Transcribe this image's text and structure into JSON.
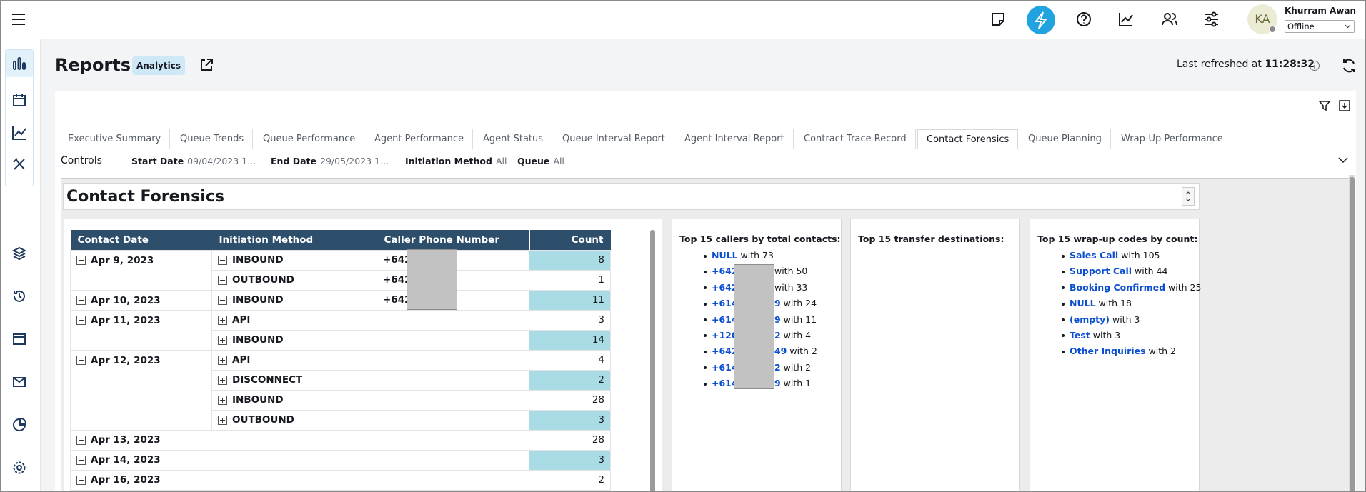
{
  "header": {
    "user_initials": "KA",
    "user_name": "Khurram Awan",
    "status": "Offline"
  },
  "page": {
    "title": "Reports",
    "badge": "Analytics",
    "refreshed_label": "Last refreshed at",
    "refreshed_time": "11:28:32"
  },
  "tabs": {
    "items": [
      "Executive Summary",
      "Queue Trends",
      "Queue Performance",
      "Agent Performance",
      "Agent Status",
      "Queue Interval Report",
      "Agent Interval Report",
      "Contract Trace Record",
      "Contact Forensics",
      "Queue Planning",
      "Wrap-Up Performance"
    ],
    "active": 8
  },
  "controls": {
    "label": "Controls",
    "filters": [
      {
        "label": "Start Date",
        "value": "09/04/2023 1…"
      },
      {
        "label": "End Date",
        "value": "29/05/2023 1…"
      },
      {
        "label": "Initiation Method",
        "value": "All"
      },
      {
        "label": "Queue",
        "value": "All"
      }
    ]
  },
  "report": {
    "title": "Contact Forensics",
    "table": {
      "columns": [
        "Contact Date",
        "Initiation Method",
        "Caller Phone Number",
        "Count"
      ],
      "rows": [
        {
          "date": "Apr 9, 2023",
          "expanded": true,
          "methods": [
            {
              "method": "INBOUND",
              "expanded": true,
              "phone": "+642",
              "count": 8
            },
            {
              "method": "OUTBOUND",
              "expanded": true,
              "phone": "+642",
              "count": 1
            }
          ]
        },
        {
          "date": "Apr 10, 2023",
          "expanded": true,
          "methods": [
            {
              "method": "INBOUND",
              "expanded": true,
              "phone": "+642",
              "count": 11
            }
          ]
        },
        {
          "date": "Apr 11, 2023",
          "expanded": true,
          "methods": [
            {
              "method": "API",
              "expanded": false,
              "count": 3
            },
            {
              "method": "INBOUND",
              "expanded": false,
              "count": 14
            }
          ]
        },
        {
          "date": "Apr 12, 2023",
          "expanded": true,
          "methods": [
            {
              "method": "API",
              "expanded": false,
              "count": 4
            },
            {
              "method": "DISCONNECT",
              "expanded": false,
              "count": 2
            },
            {
              "method": "INBOUND",
              "expanded": false,
              "count": 28
            },
            {
              "method": "OUTBOUND",
              "expanded": false,
              "count": 3
            }
          ]
        },
        {
          "date": "Apr 13, 2023",
          "expanded": false,
          "count": 28
        },
        {
          "date": "Apr 14, 2023",
          "expanded": false,
          "count": 3
        },
        {
          "date": "Apr 16, 2023",
          "expanded": false,
          "count": 2
        }
      ]
    },
    "callers": {
      "title": "Top 15 callers by total contacts:",
      "items": [
        {
          "label": "NULL",
          "suffix": "with 73"
        },
        {
          "label": "+642",
          "suffix": "with 50"
        },
        {
          "label": "+642",
          "suffix": "with 33"
        },
        {
          "label": "+614",
          "tail": "9",
          "suffix": "with 24"
        },
        {
          "label": "+614",
          "tail": "9",
          "suffix": "with 11"
        },
        {
          "label": "+120",
          "tail": "2",
          "suffix": "with 4"
        },
        {
          "label": "+642",
          "tail": "49",
          "suffix": "with 2"
        },
        {
          "label": "+614",
          "tail": "2",
          "suffix": "with 2"
        },
        {
          "label": "+614",
          "tail": "9",
          "suffix": "with 1"
        }
      ]
    },
    "transfers": {
      "title": "Top 15 transfer destinations:"
    },
    "wrapup": {
      "title": "Top 15 wrap-up codes by count:",
      "items": [
        {
          "label": "Sales Call",
          "suffix": "with 105"
        },
        {
          "label": "Support Call",
          "suffix": "with 44"
        },
        {
          "label": "Booking Confirmed",
          "suffix": "with 25"
        },
        {
          "label": "NULL",
          "suffix": "with 18"
        },
        {
          "label": "(empty)",
          "suffix": "with 3"
        },
        {
          "label": "Test",
          "suffix": "with 3"
        },
        {
          "label": "Other Inquiries",
          "suffix": "with 2"
        }
      ]
    }
  }
}
